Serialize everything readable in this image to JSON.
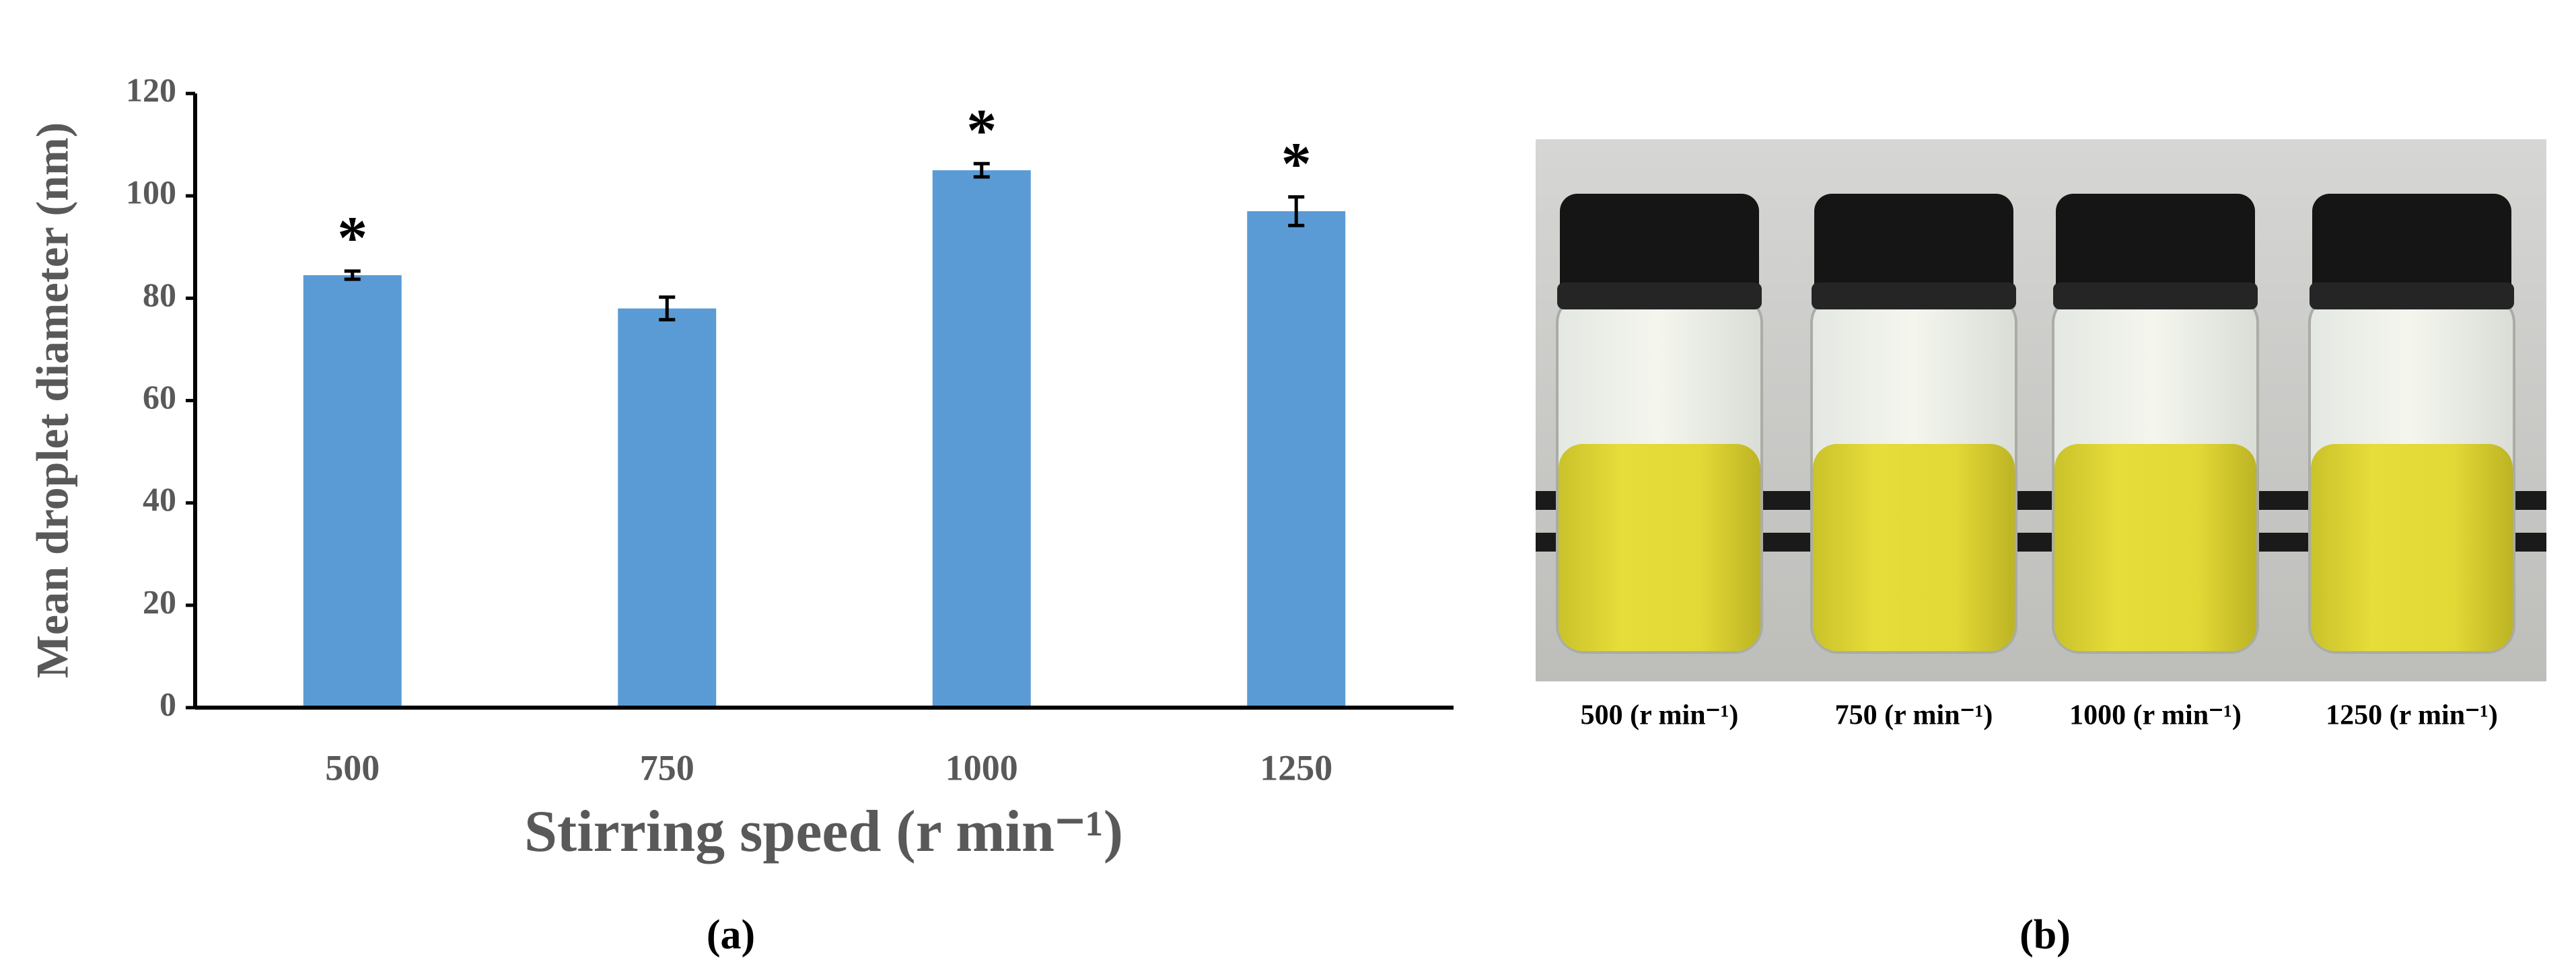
{
  "chart_data": {
    "type": "bar",
    "x_label": "Stirring speed (r min⁻¹)",
    "y_label": "Mean droplet diameter (nm)",
    "categories": [
      "500",
      "750",
      "1000",
      "1250"
    ],
    "values": [
      84.5,
      78,
      105,
      97
    ],
    "errors": [
      0.8,
      2.2,
      1.3,
      2.8
    ],
    "annotations": [
      "*",
      null,
      "*",
      "*"
    ],
    "color": "#5b9bd5",
    "ylim": [
      0,
      120
    ],
    "yticks": [
      0,
      20,
      40,
      60,
      80,
      100,
      120
    ],
    "grid": false
  },
  "photo": {
    "labels": [
      "500 (r min⁻¹)",
      "750 (r min⁻¹)",
      "1000 (r min⁻¹)",
      "1250 (r min⁻¹)"
    ]
  },
  "panel_labels": [
    "(a)",
    "(b)"
  ]
}
